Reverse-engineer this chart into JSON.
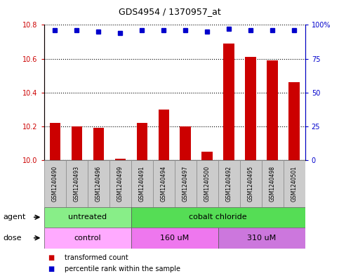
{
  "title": "GDS4954 / 1370957_at",
  "samples": [
    "GSM1240490",
    "GSM1240493",
    "GSM1240496",
    "GSM1240499",
    "GSM1240491",
    "GSM1240494",
    "GSM1240497",
    "GSM1240500",
    "GSM1240492",
    "GSM1240495",
    "GSM1240498",
    "GSM1240501"
  ],
  "transformed_count": [
    10.22,
    10.2,
    10.19,
    10.01,
    10.22,
    10.3,
    10.2,
    10.05,
    10.69,
    10.61,
    10.59,
    10.46
  ],
  "percentile_rank": [
    96,
    96,
    95,
    94,
    96,
    96,
    96,
    95,
    97,
    96,
    96,
    96
  ],
  "ylim_left": [
    10.0,
    10.8
  ],
  "ylim_right": [
    0,
    100
  ],
  "yticks_left": [
    10.0,
    10.2,
    10.4,
    10.6,
    10.8
  ],
  "yticks_right": [
    0,
    25,
    50,
    75,
    100
  ],
  "ytick_labels_right": [
    "0",
    "25",
    "50",
    "75",
    "100%"
  ],
  "bar_color": "#cc0000",
  "dot_color": "#0000cc",
  "agent_groups": [
    {
      "label": "untreated",
      "start": 0,
      "end": 4,
      "color": "#88ee88"
    },
    {
      "label": "cobalt chloride",
      "start": 4,
      "end": 12,
      "color": "#55dd55"
    }
  ],
  "dose_groups": [
    {
      "label": "control",
      "start": 0,
      "end": 4,
      "color": "#ffaaff"
    },
    {
      "label": "160 uM",
      "start": 4,
      "end": 8,
      "color": "#ee77ee"
    },
    {
      "label": "310 uM",
      "start": 8,
      "end": 12,
      "color": "#cc77dd"
    }
  ],
  "legend_bar_label": "transformed count",
  "legend_dot_label": "percentile rank within the sample",
  "agent_label": "agent",
  "dose_label": "dose",
  "background_color": "#ffffff",
  "sample_box_color": "#cccccc",
  "bar_width": 0.5
}
